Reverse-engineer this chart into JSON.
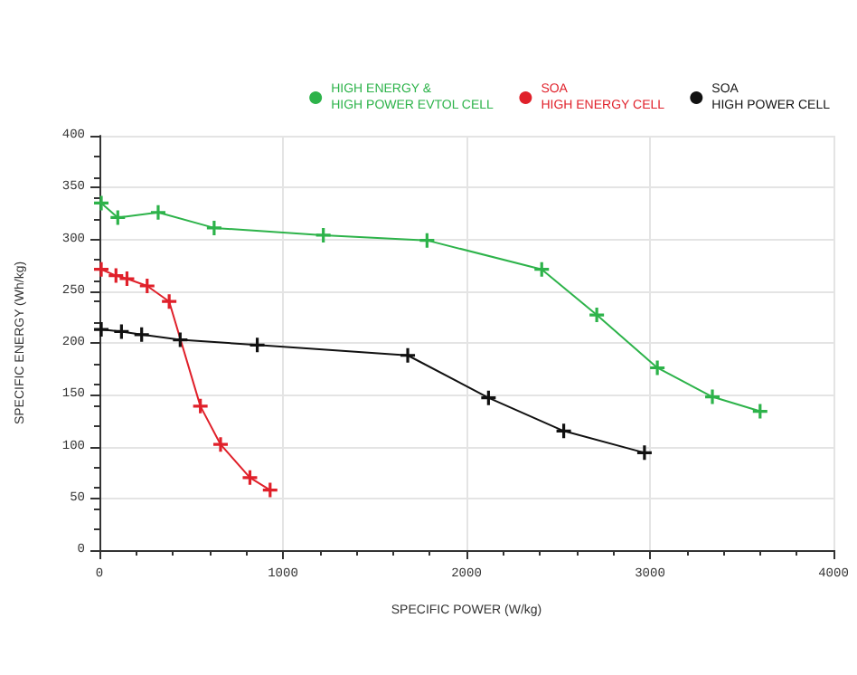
{
  "chart_data": {
    "type": "line",
    "xlabel": "SPECIFIC POWER (W/kg)",
    "ylabel": "SPECIFIC ENERGY (Wh/kg)",
    "xlim": [
      0,
      4000
    ],
    "xticks": [
      0,
      1000,
      2000,
      3000,
      4000
    ],
    "ylim": [
      0,
      400
    ],
    "yticks": [
      0,
      50,
      100,
      150,
      200,
      250,
      300,
      350,
      400
    ],
    "grid": true,
    "legend": "top right",
    "marker": "cross",
    "line_style": "solid",
    "series": [
      {
        "name": "HIGH ENERGY &\nHIGH POWER EVTOL CELL",
        "color": "#2db34a",
        "x": [
          10,
          100,
          320,
          625,
          1220,
          1785,
          2410,
          2710,
          3040,
          3340,
          3600
        ],
        "values": [
          335,
          321,
          326,
          311,
          304,
          299,
          271,
          227,
          176,
          148,
          134
        ]
      },
      {
        "name": "SOA\nHIGH ENERGY CELL",
        "color": "#e0202a",
        "x": [
          10,
          90,
          150,
          260,
          380,
          550,
          660,
          820,
          930
        ],
        "values": [
          271,
          265,
          262,
          255,
          240,
          139,
          102,
          70,
          58
        ]
      },
      {
        "name": "SOA\nHIGH POWER CELL",
        "color": "#111111",
        "x": [
          10,
          120,
          230,
          440,
          860,
          1680,
          2120,
          2530,
          2970
        ],
        "values": [
          213,
          211,
          208,
          203,
          198,
          188,
          147,
          115,
          94
        ]
      }
    ]
  }
}
